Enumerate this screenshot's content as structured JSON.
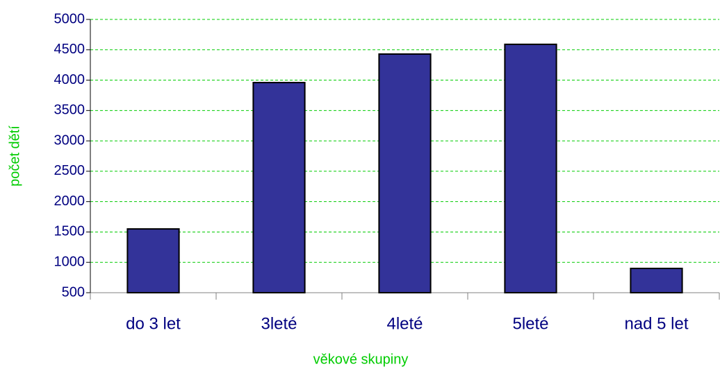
{
  "chart_data": {
    "type": "bar",
    "x_label": "věkové skupiny",
    "y_label": "počet dětí",
    "categories": [
      "do 3 let",
      "3leté",
      "4leté",
      "5leté",
      "nad 5 let"
    ],
    "values": [
      1550,
      3960,
      4430,
      4590,
      900
    ],
    "color": "#333399",
    "ylim": [
      500,
      5000
    ],
    "yticks": [
      500,
      1000,
      1500,
      2000,
      2500,
      3000,
      3500,
      4000,
      4500,
      5000
    ],
    "grid": true
  }
}
